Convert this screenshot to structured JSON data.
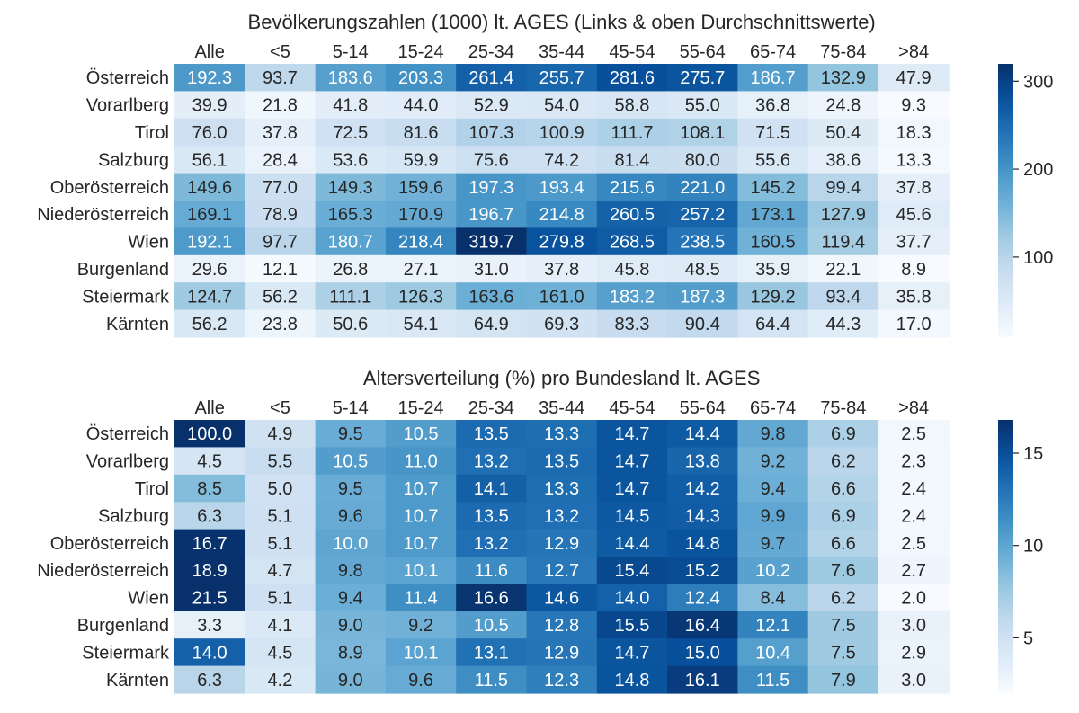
{
  "chart_data": [
    {
      "type": "heatmap",
      "title": "Bevölkerungszahlen (1000) lt. AGES (Links & oben Durchschnittswerte)",
      "columns": [
        "Alle",
        "<5",
        "5-14",
        "15-24",
        "25-34",
        "35-44",
        "45-54",
        "55-64",
        "65-74",
        "75-84",
        ">84"
      ],
      "rows": [
        "Österreich",
        "Vorarlberg",
        "Tirol",
        "Salzburg",
        "Oberösterreich",
        "Niederösterreich",
        "Wien",
        "Burgenland",
        "Steiermark",
        "Kärnten"
      ],
      "values": [
        [
          "192.3",
          "93.7",
          "183.6",
          "203.3",
          "261.4",
          "255.7",
          "281.6",
          "275.7",
          "186.7",
          "132.9",
          "47.9"
        ],
        [
          "39.9",
          "21.8",
          "41.8",
          "44.0",
          "52.9",
          "54.0",
          "58.8",
          "55.0",
          "36.8",
          "24.8",
          "9.3"
        ],
        [
          "76.0",
          "37.8",
          "72.5",
          "81.6",
          "107.3",
          "100.9",
          "111.7",
          "108.1",
          "71.5",
          "50.4",
          "18.3"
        ],
        [
          "56.1",
          "28.4",
          "53.6",
          "59.9",
          "75.6",
          "74.2",
          "81.4",
          "80.0",
          "55.6",
          "38.6",
          "13.3"
        ],
        [
          "149.6",
          "77.0",
          "149.3",
          "159.6",
          "197.3",
          "193.4",
          "215.6",
          "221.0",
          "145.2",
          "99.4",
          "37.8"
        ],
        [
          "169.1",
          "78.9",
          "165.3",
          "170.9",
          "196.7",
          "214.8",
          "260.5",
          "257.2",
          "173.1",
          "127.9",
          "45.6"
        ],
        [
          "192.1",
          "97.7",
          "180.7",
          "218.4",
          "319.7",
          "279.8",
          "268.5",
          "238.5",
          "160.5",
          "119.4",
          "37.7"
        ],
        [
          "29.6",
          "12.1",
          "26.8",
          "27.1",
          "31.0",
          "37.8",
          "45.8",
          "48.5",
          "35.9",
          "22.1",
          "8.9"
        ],
        [
          "124.7",
          "56.2",
          "111.1",
          "126.3",
          "163.6",
          "161.0",
          "183.2",
          "187.3",
          "129.2",
          "93.4",
          "35.8"
        ],
        [
          "56.2",
          "23.8",
          "50.6",
          "54.1",
          "64.9",
          "69.3",
          "83.3",
          "90.4",
          "64.4",
          "44.3",
          "17.0"
        ]
      ],
      "colorbar": {
        "min": 8.9,
        "max": 319.7,
        "ticks": [
          "100",
          "200",
          "300"
        ]
      },
      "colormap": "Blues"
    },
    {
      "type": "heatmap",
      "title": "Altersverteilung (%) pro Bundesland lt. AGES",
      "columns": [
        "Alle",
        "<5",
        "5-14",
        "15-24",
        "25-34",
        "35-44",
        "45-54",
        "55-64",
        "65-74",
        "75-84",
        ">84"
      ],
      "rows": [
        "Österreich",
        "Vorarlberg",
        "Tirol",
        "Salzburg",
        "Oberösterreich",
        "Niederösterreich",
        "Wien",
        "Burgenland",
        "Steiermark",
        "Kärnten"
      ],
      "values": [
        [
          "100.0",
          "4.9",
          "9.5",
          "10.5",
          "13.5",
          "13.3",
          "14.7",
          "14.4",
          "9.8",
          "6.9",
          "2.5"
        ],
        [
          "4.5",
          "5.5",
          "10.5",
          "11.0",
          "13.2",
          "13.5",
          "14.7",
          "13.8",
          "9.2",
          "6.2",
          "2.3"
        ],
        [
          "8.5",
          "5.0",
          "9.5",
          "10.7",
          "14.1",
          "13.3",
          "14.7",
          "14.2",
          "9.4",
          "6.6",
          "2.4"
        ],
        [
          "6.3",
          "5.1",
          "9.6",
          "10.7",
          "13.5",
          "13.2",
          "14.5",
          "14.3",
          "9.9",
          "6.9",
          "2.4"
        ],
        [
          "16.7",
          "5.1",
          "10.0",
          "10.7",
          "13.2",
          "12.9",
          "14.4",
          "14.8",
          "9.7",
          "6.6",
          "2.5"
        ],
        [
          "18.9",
          "4.7",
          "9.8",
          "10.1",
          "11.6",
          "12.7",
          "15.4",
          "15.2",
          "10.2",
          "7.6",
          "2.7"
        ],
        [
          "21.5",
          "5.1",
          "9.4",
          "11.4",
          "16.6",
          "14.6",
          "14.0",
          "12.4",
          "8.4",
          "6.2",
          "2.0"
        ],
        [
          "3.3",
          "4.1",
          "9.0",
          "9.2",
          "10.5",
          "12.8",
          "15.5",
          "16.4",
          "12.1",
          "7.5",
          "3.0"
        ],
        [
          "14.0",
          "4.5",
          "8.9",
          "10.1",
          "13.1",
          "12.9",
          "14.7",
          "15.0",
          "10.4",
          "7.5",
          "2.9"
        ],
        [
          "6.3",
          "4.2",
          "9.0",
          "9.6",
          "11.5",
          "12.3",
          "14.8",
          "16.1",
          "11.5",
          "7.9",
          "3.0"
        ]
      ],
      "colorbar": {
        "min": 2.0,
        "max": 16.8,
        "ticks": [
          "5",
          "10",
          "15"
        ]
      },
      "colormap": "Blues"
    }
  ]
}
